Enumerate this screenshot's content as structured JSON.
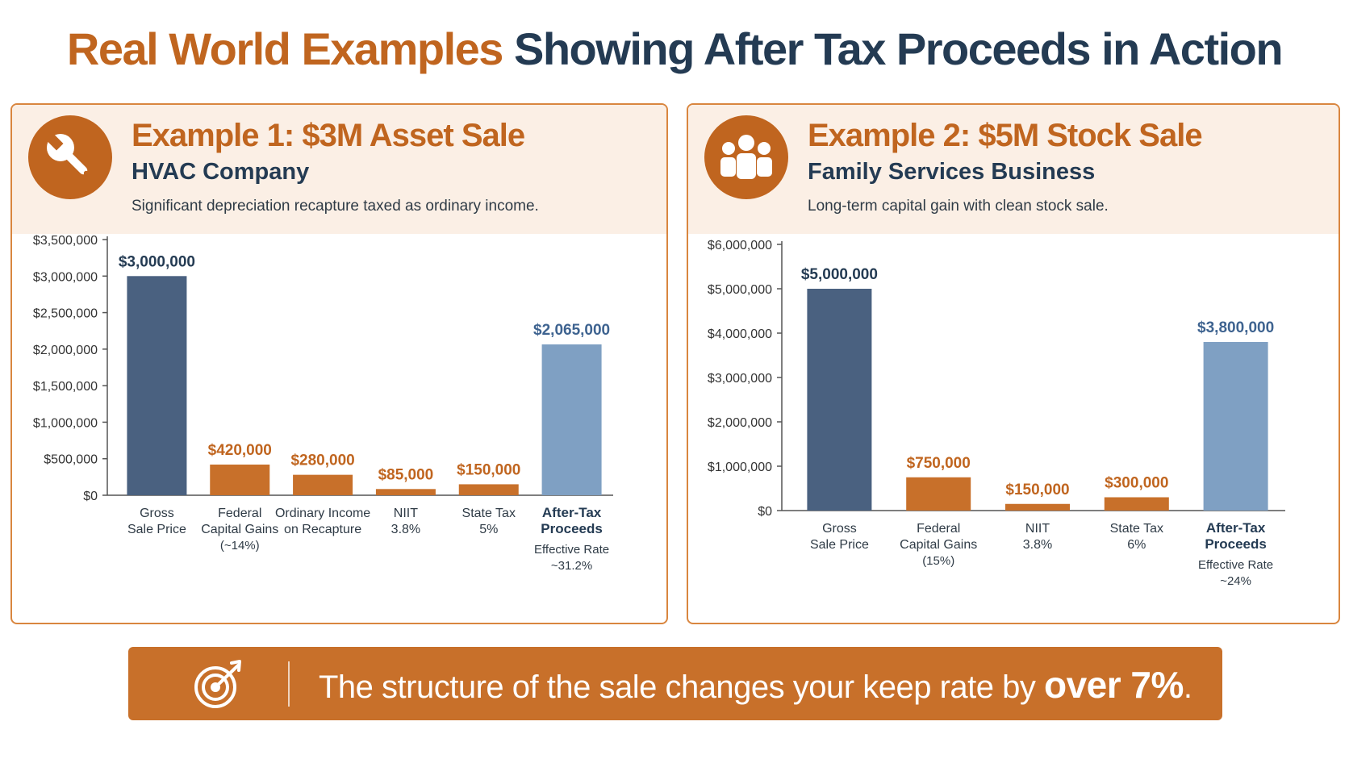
{
  "title": {
    "accent": "Real World Examples",
    "rest": "Showing After Tax Proceeds in Action"
  },
  "panels": [
    {
      "title": "Example 1: $3M Asset Sale",
      "subtitle": "HVAC Company",
      "description": "Significant depreciation recapture taxed as ordinary income.",
      "icon": "wrench-icon"
    },
    {
      "title": "Example 2: $5M Stock Sale",
      "subtitle": "Family Services Business",
      "description": "Long-term capital gain with clean stock sale.",
      "icon": "people-group-icon"
    }
  ],
  "banner": {
    "icon": "target-icon",
    "text": "The structure of the sale changes your keep rate by",
    "emphasis": "over 7%",
    "end": "."
  },
  "colors": {
    "accent": "#c0651f",
    "dark_blue": "#4a6180",
    "light_blue": "#7fa0c3",
    "tax_orange": "#c8702a",
    "title_dark": "#243b53"
  },
  "chart_data": [
    {
      "type": "bar",
      "categories": [
        [
          "Gross",
          "Sale Price"
        ],
        [
          "Federal",
          "Capital Gains",
          "(~14%)"
        ],
        [
          "Ordinary Income",
          "on Recapture"
        ],
        [
          "NIIT",
          "3.8%"
        ],
        [
          "State Tax",
          "5%"
        ],
        [
          "After-Tax",
          "Proceeds",
          "Effective Rate",
          "~31.2%"
        ]
      ],
      "values": [
        3000000,
        420000,
        280000,
        85000,
        150000,
        2065000
      ],
      "value_labels": [
        "$3,000,000",
        "$420,000",
        "$280,000",
        "$85,000",
        "$150,000",
        "$2,065,000"
      ],
      "bar_colors": [
        "#4a6180",
        "#c8702a",
        "#c8702a",
        "#c8702a",
        "#c8702a",
        "#7fa0c3"
      ],
      "label_colors": [
        "#243b53",
        "#c0651f",
        "#c0651f",
        "#c0651f",
        "#c0651f",
        "#3e6390"
      ],
      "ylim": [
        0,
        3500000
      ],
      "yticks": [
        0,
        500000,
        1000000,
        1500000,
        2000000,
        2500000,
        3000000,
        3500000
      ],
      "ytick_labels": [
        "$0",
        "$500,000",
        "$1,000,000",
        "$1,500,000",
        "$2,000,000",
        "$2,500,000",
        "$3,000,000",
        "$3,500,000"
      ],
      "grid": false
    },
    {
      "type": "bar",
      "categories": [
        [
          "Gross",
          "Sale Price"
        ],
        [
          "Federal",
          "Capital Gains",
          "(15%)"
        ],
        [
          "NIIT",
          "3.8%"
        ],
        [
          "State Tax",
          "6%"
        ],
        [
          "After-Tax",
          "Proceeds",
          "Effective Rate",
          "~24%"
        ]
      ],
      "values": [
        5000000,
        750000,
        150000,
        300000,
        3800000
      ],
      "value_labels": [
        "$5,000,000",
        "$750,000",
        "$150,000",
        "$300,000",
        "$3,800,000"
      ],
      "bar_colors": [
        "#4a6180",
        "#c8702a",
        "#c8702a",
        "#c8702a",
        "#7fa0c3"
      ],
      "label_colors": [
        "#243b53",
        "#c0651f",
        "#c0651f",
        "#c0651f",
        "#3e6390"
      ],
      "ylim": [
        0,
        6000000
      ],
      "yticks": [
        0,
        1000000,
        2000000,
        3000000,
        4000000,
        5000000,
        6000000
      ],
      "ytick_labels": [
        "$0",
        "$1,000,000",
        "$2,000,000",
        "$3,000,000",
        "$4,000,000",
        "$5,000,000",
        "$6,000,000"
      ],
      "grid": false
    }
  ]
}
